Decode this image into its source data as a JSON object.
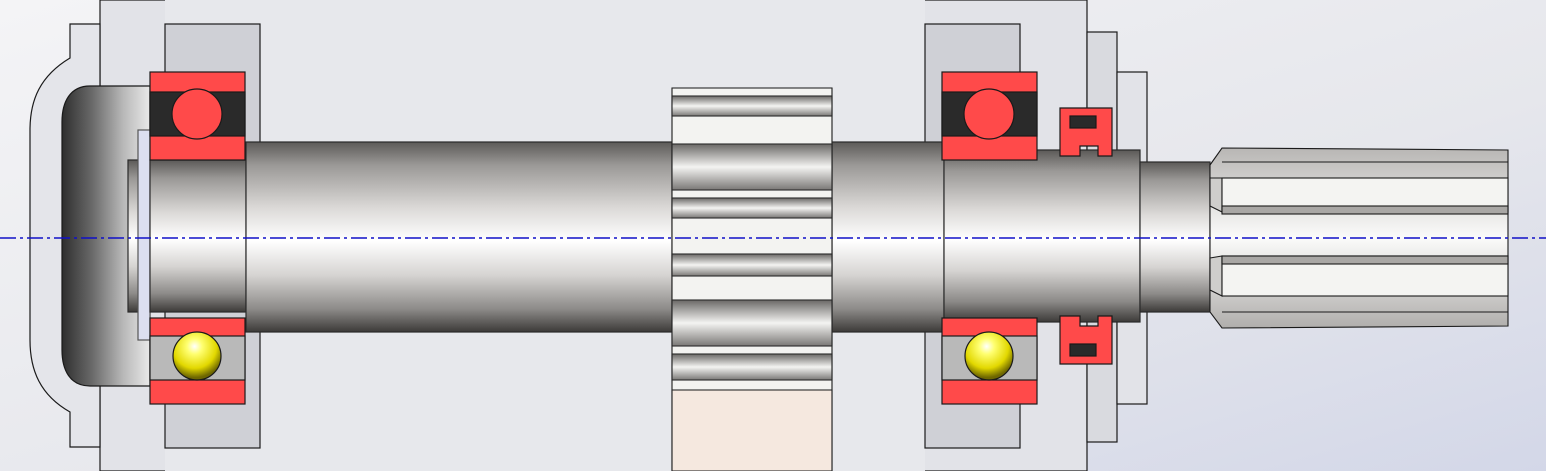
{
  "scene": {
    "kind": "cad-section-view",
    "subject": "shaft-assembly-with-bearings-gear-and-seals"
  },
  "components": {
    "left_housing_cover": {
      "icon": "housing-cover-icon"
    },
    "left_bearing": {
      "icon": "ball-bearing-icon"
    },
    "shaft": {
      "icon": "shaft-icon"
    },
    "spur_gear": {
      "icon": "gear-icon"
    },
    "right_bearing": {
      "icon": "ball-bearing-icon"
    },
    "lip_seal": {
      "icon": "seal-icon"
    },
    "splined_end": {
      "icon": "spline-icon"
    }
  },
  "colors": {
    "background_top": "#f2f2f4",
    "background_bottom": "#d9dcea",
    "housing_fill": "#d2d3d8",
    "housing_dark": "#bcbec6",
    "section_outline": "#1a1a1a",
    "bearing_ring": "#ff4a4a",
    "bearing_ball_sectioned": "#ff4a4a",
    "bearing_ball_shaded": "#e8e010",
    "seal": "#ff4a4a",
    "gear_lower_section": "#f5e8df",
    "centerline": "#1010c8"
  }
}
